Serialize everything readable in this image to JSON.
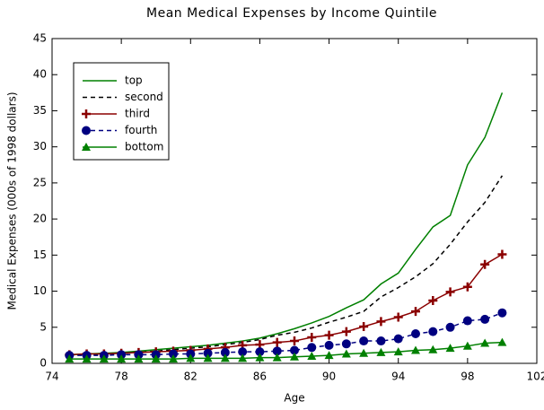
{
  "chart_data": {
    "type": "line",
    "title": "Mean Medical Expenses by Income Quintile",
    "xlabel": "Age",
    "ylabel": "Medical Expenses (000s of 1998 dollars)",
    "x": [
      75,
      76,
      77,
      78,
      79,
      80,
      81,
      82,
      83,
      84,
      85,
      86,
      87,
      88,
      89,
      90,
      91,
      92,
      93,
      94,
      95,
      96,
      97,
      98,
      99,
      100
    ],
    "series": [
      {
        "name": "top",
        "color": "#008000",
        "dash": false,
        "marker": "none",
        "values": [
          1.2,
          1.3,
          1.4,
          1.5,
          1.7,
          1.9,
          2.1,
          2.3,
          2.5,
          2.8,
          3.1,
          3.5,
          4.1,
          4.8,
          5.6,
          6.5,
          7.7,
          8.8,
          11.0,
          12.5,
          15.8,
          18.9,
          20.5,
          27.5,
          31.3,
          37.5
        ]
      },
      {
        "name": "second",
        "color": "#000000",
        "dash": true,
        "marker": "none",
        "values": [
          1.1,
          1.2,
          1.3,
          1.4,
          1.5,
          1.7,
          1.9,
          2.1,
          2.3,
          2.6,
          2.9,
          3.3,
          3.9,
          4.3,
          4.9,
          5.7,
          6.4,
          7.2,
          9.2,
          10.5,
          12.0,
          13.8,
          16.5,
          19.6,
          22.3,
          26.0
        ]
      },
      {
        "name": "third",
        "color": "#8b0000",
        "dash": false,
        "marker": "plus",
        "values": [
          1.2,
          1.3,
          1.3,
          1.4,
          1.5,
          1.6,
          1.7,
          1.8,
          2.0,
          2.2,
          2.5,
          2.6,
          2.9,
          3.1,
          3.6,
          3.9,
          4.4,
          5.1,
          5.8,
          6.4,
          7.2,
          8.7,
          9.9,
          10.6,
          13.7,
          15.1
        ]
      },
      {
        "name": "fourth",
        "color": "#000080",
        "dash": true,
        "marker": "circle",
        "values": [
          1.1,
          1.1,
          1.1,
          1.2,
          1.2,
          1.2,
          1.3,
          1.3,
          1.4,
          1.5,
          1.6,
          1.6,
          1.7,
          1.8,
          2.2,
          2.5,
          2.7,
          3.1,
          3.1,
          3.4,
          4.1,
          4.4,
          5.0,
          5.9,
          6.1,
          7.0
        ]
      },
      {
        "name": "bottom",
        "color": "#008000",
        "dash": false,
        "marker": "triangle",
        "values": [
          0.6,
          0.6,
          0.6,
          0.6,
          0.6,
          0.6,
          0.6,
          0.7,
          0.7,
          0.7,
          0.7,
          0.8,
          0.8,
          0.9,
          1.0,
          1.1,
          1.3,
          1.4,
          1.5,
          1.6,
          1.8,
          1.9,
          2.1,
          2.4,
          2.8,
          2.9
        ]
      }
    ],
    "xlim": [
      74,
      102
    ],
    "xticks": [
      74,
      78,
      82,
      86,
      90,
      94,
      98,
      102
    ],
    "ylim": [
      0,
      45
    ],
    "yticks": [
      0,
      5,
      10,
      15,
      20,
      25,
      30,
      35,
      40,
      45
    ],
    "grid": false,
    "legend": "upper left"
  }
}
